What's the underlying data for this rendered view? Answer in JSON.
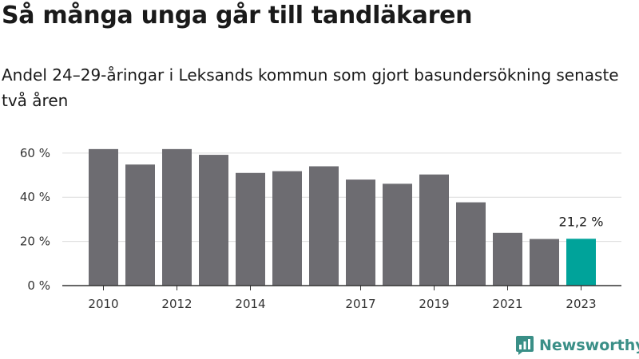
{
  "chart_data": {
    "type": "bar",
    "title": "Så många unga går till tandläkaren",
    "subtitle": "Andel 24–29-åringar i Leksands kommun som gjort basundersökning senaste två åren",
    "categories": [
      "2010",
      "2011",
      "2012",
      "2013",
      "2014",
      "2015",
      "2016",
      "2017",
      "2018",
      "2019",
      "2020",
      "2021",
      "2022",
      "2023"
    ],
    "x_tick_labels": [
      "2010",
      "2012",
      "2014",
      "2017",
      "2019",
      "2021",
      "2023"
    ],
    "values": [
      61.8,
      54.8,
      61.8,
      59.2,
      51.0,
      51.8,
      54.0,
      48.0,
      46.1,
      50.3,
      37.7,
      23.9,
      21.1,
      21.2
    ],
    "ylim": [
      0,
      65
    ],
    "y_ticks": [
      0,
      20,
      40,
      60
    ],
    "y_tick_labels": [
      "0 %",
      "20 %",
      "40 %",
      "60 %"
    ],
    "annotation": {
      "category": "2023",
      "text": "21,2 %"
    },
    "grid": true,
    "colors": {
      "bar": "#6d6c71",
      "highlight": "#00a39a",
      "grid": "#dcdcdc",
      "axis": "#333333"
    },
    "highlight_category": "2023"
  },
  "branding": {
    "logo_text": "Newsworthy",
    "logo_icon": "newsworthy-logo-icon",
    "logo_color": "#3a8f87"
  }
}
